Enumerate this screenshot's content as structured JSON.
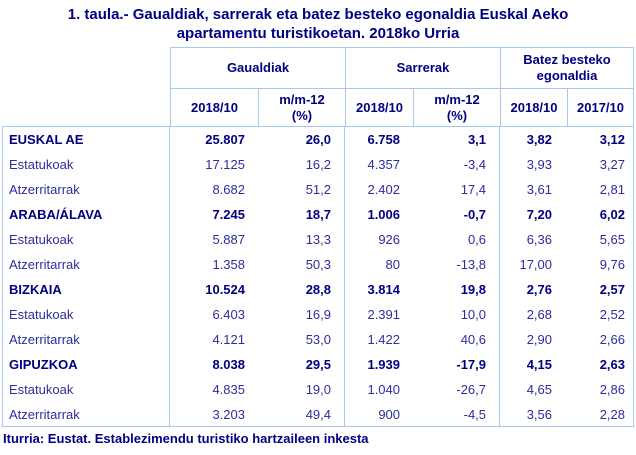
{
  "title": {
    "line1": "1. taula.- Gaualdiak, sarrerak eta batez besteko egonaldia Euskal Aeko",
    "line2": "apartamentu turistikoetan. 2018ko Urria"
  },
  "table": {
    "groups": [
      "Gaualdiak",
      "Sarrerak",
      "Batez besteko egonaldia"
    ],
    "subheaders": [
      "2018/10",
      "m/m-12\n(%)",
      "2018/10",
      "m/m-12\n(%)",
      "2018/10",
      "2017/10"
    ],
    "rows": [
      {
        "label": "EUSKAL AE",
        "bold": true,
        "values": [
          "25.807",
          "26,0",
          "6.758",
          "3,1",
          "3,82",
          "3,12"
        ]
      },
      {
        "label": "Estatukoak",
        "bold": false,
        "values": [
          "17.125",
          "16,2",
          "4.357",
          "-3,4",
          "3,93",
          "3,27"
        ]
      },
      {
        "label": "Atzerritarrak",
        "bold": false,
        "values": [
          "8.682",
          "51,2",
          "2.402",
          "17,4",
          "3,61",
          "2,81"
        ]
      },
      {
        "label": "ARABA/ÁLAVA",
        "bold": true,
        "values": [
          "7.245",
          "18,7",
          "1.006",
          "-0,7",
          "7,20",
          "6,02"
        ]
      },
      {
        "label": "Estatukoak",
        "bold": false,
        "values": [
          "5.887",
          "13,3",
          "926",
          "0,6",
          "6,36",
          "5,65"
        ]
      },
      {
        "label": "Atzerritarrak",
        "bold": false,
        "values": [
          "1.358",
          "50,3",
          "80",
          "-13,8",
          "17,00",
          "9,76"
        ]
      },
      {
        "label": "BIZKAIA",
        "bold": true,
        "values": [
          "10.524",
          "28,8",
          "3.814",
          "19,8",
          "2,76",
          "2,57"
        ]
      },
      {
        "label": "Estatukoak",
        "bold": false,
        "values": [
          "6.403",
          "16,9",
          "2.391",
          "10,0",
          "2,68",
          "2,52"
        ]
      },
      {
        "label": "Atzerritarrak",
        "bold": false,
        "values": [
          "4.121",
          "53,0",
          "1.422",
          "40,6",
          "2,90",
          "2,66"
        ]
      },
      {
        "label": "GIPUZKOA",
        "bold": true,
        "values": [
          "8.038",
          "29,5",
          "1.939",
          "-17,9",
          "4,15",
          "2,63"
        ]
      },
      {
        "label": "Estatukoak",
        "bold": false,
        "values": [
          "4.835",
          "19,0",
          "1.040",
          "-26,7",
          "4,65",
          "2,86"
        ]
      },
      {
        "label": "Atzerritarrak",
        "bold": false,
        "values": [
          "3.203",
          "49,4",
          "900",
          "-4,5",
          "3,56",
          "2,28"
        ]
      }
    ]
  },
  "footer": "Iturria: Eustat. Establezimendu turistiko hartzaileen inkesta",
  "colors": {
    "border": "#a8c9ee",
    "text_bold": "#000082",
    "text_regular": "#2d2d9d",
    "background": "#ffffff"
  }
}
